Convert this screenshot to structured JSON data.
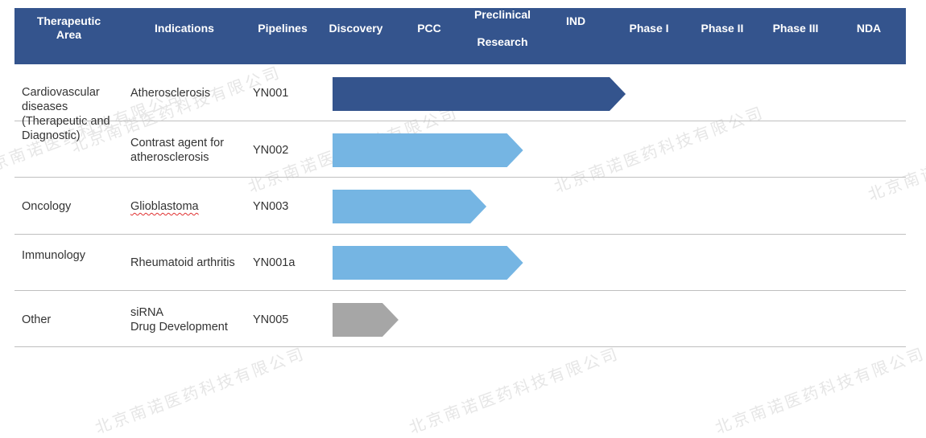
{
  "header": {
    "therapeutic_area": "Therapeutic\nArea",
    "indications": "Indications",
    "pipelines": "Pipelines",
    "stages": [
      "Discovery",
      "PCC",
      "Preclinical\n\nResearch",
      "IND",
      "Phase I",
      "Phase II",
      "Phase III",
      "NDA"
    ]
  },
  "rows": [
    {
      "area": "Cardiovascular\ndiseases\n(Therapeutic and\nDiagnostic)",
      "indication": "Atherosclerosis",
      "pipeline": "YN001"
    },
    {
      "area": "",
      "indication": "Contrast agent for\natherosclerosis",
      "pipeline": "YN002"
    },
    {
      "area": "Oncology",
      "indication": "Glioblastoma",
      "pipeline": "YN003"
    },
    {
      "area": "Immunology",
      "indication": "Rheumatoid arthritis",
      "pipeline": "YN001a"
    },
    {
      "area": "Other",
      "indication": "siRNA\nDrug Development",
      "pipeline": "YN005"
    }
  ],
  "watermark_text": "北京南诺医药科技有限公司",
  "colors": {
    "header_bg": "#34548d",
    "dark_blue": "#34548d",
    "light_blue": "#75b5e3",
    "gray": "#a6a6a6",
    "divider": "#bfbfbf"
  },
  "chart_data": {
    "type": "bar",
    "orientation": "horizontal",
    "stage_scale": [
      "Discovery",
      "PCC",
      "Preclinical Research",
      "IND",
      "Phase I",
      "Phase II",
      "Phase III",
      "NDA"
    ],
    "categories": [
      "YN001",
      "YN002",
      "YN003",
      "YN001a",
      "YN005"
    ],
    "series": [
      {
        "values": [
          4.0,
          2.6,
          2.1,
          2.6,
          0.9
        ]
      }
    ],
    "bar_colors": [
      "#34548d",
      "#75b5e3",
      "#75b5e3",
      "#75b5e3",
      "#a6a6a6"
    ],
    "xlim": [
      0,
      8
    ],
    "title": "",
    "xlabel": "",
    "ylabel": ""
  }
}
